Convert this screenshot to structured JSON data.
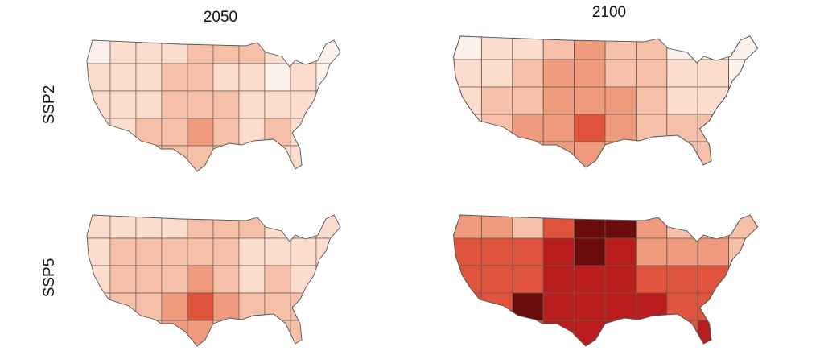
{
  "columns": [
    "2050",
    "2100"
  ],
  "rows": [
    "SSP2",
    "SSP5"
  ]
}
